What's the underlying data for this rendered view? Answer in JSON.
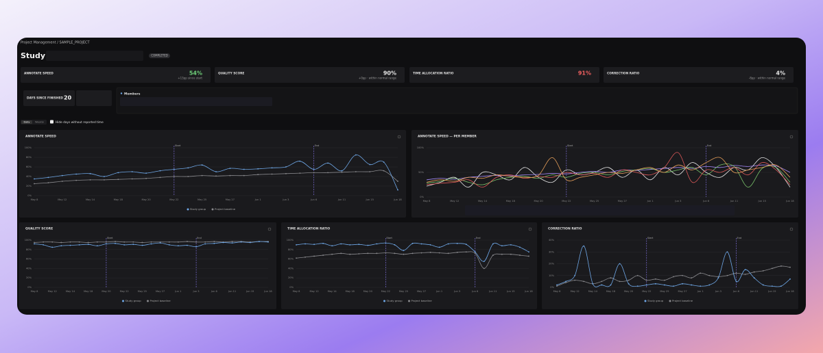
{
  "breadcrumb": "Project Management / SAMPLE_PROJECT",
  "study_label": "Study:",
  "status": "COMPLETED",
  "kpis": [
    {
      "title": "ANNOTATE SPEED",
      "value": 54,
      "value_label": "54%",
      "delta": "+13pp since start",
      "color": "#6fd07a"
    },
    {
      "title": "QUALITY SCORE",
      "value": 90,
      "value_label": "90%",
      "delta": "+0pp · within normal range",
      "color": "#e6e6e6"
    },
    {
      "title": "TIME ALLOCATION RATIO",
      "value": 91,
      "value_label": "91%",
      "delta": "",
      "color": "#f06060"
    },
    {
      "title": "CORRECTION RATIO",
      "value": 4,
      "value_label": "4%",
      "delta": "-8pp · within normal range",
      "color": "#e6e6e6"
    }
  ],
  "days_since_finished": {
    "label": "DAYS SINCE FINISHED",
    "value": 20
  },
  "members_label": "Members",
  "view_toggle": [
    "Daily",
    "Weekly"
  ],
  "hide_days": "Hide days without reported time",
  "chart_data": [
    {
      "type": "line",
      "title": "ANNOTATE SPEED",
      "categories": [
        "May 8",
        null,
        "May 12",
        null,
        "May 14",
        null,
        "May 18",
        null,
        "May 20",
        null,
        "May 22",
        null,
        "May 25",
        null,
        "May 27",
        null,
        "Jun 1",
        null,
        "Jun 3",
        null,
        "Jun 6",
        null,
        "Jun 11",
        null,
        "Jun 15",
        null,
        "Jun 18"
      ],
      "ylim": [
        0,
        100
      ],
      "yticks": [
        {
          "value": 0,
          "label": "0%"
        },
        {
          "value": 20,
          "label": "20%"
        },
        {
          "value": 40,
          "label": "40%"
        },
        {
          "value": 60,
          "label": "60%"
        },
        {
          "value": 80,
          "label": "80%"
        },
        {
          "value": 100,
          "label": "100%"
        }
      ],
      "markers": [
        {
          "label": "Start",
          "at": "May 22"
        },
        {
          "label": "End",
          "at": "Jun 6"
        }
      ],
      "legend": true,
      "series": [
        {
          "name": "Study group",
          "color": "#6fa8e8",
          "dots": true,
          "values": [
            35,
            38,
            42,
            45,
            46,
            40,
            48,
            50,
            47,
            52,
            55,
            58,
            64,
            50,
            57,
            55,
            56,
            58,
            60,
            72,
            55,
            68,
            52,
            85,
            65,
            70,
            12
          ]
        },
        {
          "name": "Project baseline",
          "color": "#8a8a8e",
          "dots": true,
          "values": [
            25,
            27,
            30,
            32,
            33,
            33,
            34,
            35,
            36,
            38,
            40,
            40,
            42,
            41,
            42,
            42,
            44,
            45,
            46,
            47,
            48,
            48,
            49,
            50,
            50,
            52,
            30
          ]
        }
      ]
    },
    {
      "type": "line",
      "title": "ANNOTATE SPEED — PER MEMBER",
      "categories": [
        "May 8",
        null,
        "May 12",
        null,
        "May 14",
        null,
        "May 18",
        null,
        "May 20",
        null,
        "May 22",
        null,
        "May 25",
        null,
        "May 27",
        null,
        "Jun 1",
        null,
        "Jun 3",
        null,
        "Jun 6",
        null,
        "Jun 11",
        null,
        "Jun 15",
        null,
        "Jun 18"
      ],
      "ylim": [
        0,
        100
      ],
      "yticks": [
        {
          "value": 0,
          "label": "0%"
        },
        {
          "value": 50,
          "label": "50%"
        },
        {
          "value": 100,
          "label": "100%"
        }
      ],
      "markers": [
        {
          "label": "Start",
          "at": "May 22"
        },
        {
          "label": "End",
          "at": "Jun 6"
        }
      ],
      "legend": false,
      "series": [
        {
          "color": "#e8a05a",
          "values": [
            30,
            35,
            32,
            40,
            38,
            45,
            42,
            40,
            44,
            80,
            35,
            40,
            45,
            50,
            48,
            55,
            60,
            50,
            65,
            55,
            70,
            80,
            50,
            55,
            60,
            65,
            40
          ]
        },
        {
          "color": "#e05a5a",
          "values": [
            25,
            28,
            30,
            35,
            20,
            40,
            45,
            38,
            42,
            40,
            50,
            45,
            48,
            40,
            55,
            50,
            45,
            60,
            90,
            30,
            55,
            50,
            60,
            45,
            70,
            55,
            25
          ]
        },
        {
          "color": "#7ac36a",
          "values": [
            28,
            32,
            38,
            30,
            25,
            35,
            40,
            42,
            38,
            45,
            40,
            48,
            50,
            45,
            52,
            55,
            58,
            50,
            55,
            60,
            45,
            65,
            62,
            20,
            58,
            60,
            30
          ]
        },
        {
          "color": "#a78bfa",
          "values": [
            35,
            38,
            36,
            40,
            42,
            44,
            43,
            45,
            46,
            48,
            47,
            50,
            52,
            50,
            55,
            54,
            56,
            58,
            60,
            58,
            62,
            60,
            64,
            62,
            65,
            63,
            50
          ]
        },
        {
          "color": "#e6e6e6",
          "values": [
            22,
            30,
            40,
            20,
            50,
            45,
            35,
            60,
            40,
            30,
            55,
            45,
            50,
            60,
            40,
            55,
            35,
            60,
            45,
            70,
            50,
            40,
            60,
            55,
            80,
            60,
            20
          ]
        }
      ]
    },
    {
      "type": "line",
      "title": "QUALITY SCORE",
      "categories": [
        "May 8",
        null,
        "May 12",
        null,
        "May 14",
        null,
        "May 18",
        null,
        "May 20",
        null,
        "May 22",
        null,
        "May 25",
        null,
        "May 27",
        null,
        "Jun 1",
        null,
        "Jun 3",
        null,
        "Jun 6",
        null,
        "Jun 11",
        null,
        "Jun 15",
        null,
        "Jun 18"
      ],
      "ylim": [
        0,
        100
      ],
      "yticks": [
        {
          "value": 0,
          "label": "0%"
        },
        {
          "value": 20,
          "label": "20%"
        },
        {
          "value": 40,
          "label": "40%"
        },
        {
          "value": 60,
          "label": "60%"
        },
        {
          "value": 80,
          "label": "80%"
        },
        {
          "value": 100,
          "label": "100%"
        }
      ],
      "markers": [
        {
          "label": "Start",
          "at": "May 20"
        },
        {
          "label": "End",
          "at": "Jun 3"
        }
      ],
      "legend": true,
      "series": [
        {
          "name": "Study group",
          "color": "#6fa8e8",
          "dots": true,
          "values": [
            92,
            90,
            85,
            88,
            89,
            90,
            91,
            88,
            92,
            93,
            90,
            91,
            89,
            92,
            94,
            90,
            88,
            89,
            86,
            92,
            93,
            95,
            94,
            96,
            95,
            97,
            96
          ]
        },
        {
          "name": "Project baseline",
          "color": "#8a8a8e",
          "dots": true,
          "values": [
            95,
            96,
            96,
            95,
            96,
            96,
            95,
            96,
            96,
            97,
            96,
            96,
            95,
            96,
            96,
            96,
            96,
            97,
            96,
            96,
            97,
            96,
            97,
            97,
            96,
            97,
            97
          ]
        }
      ]
    },
    {
      "type": "line",
      "title": "TIME ALLOCATION RATIO",
      "categories": [
        "May 8",
        null,
        "May 12",
        null,
        "May 14",
        null,
        "May 18",
        null,
        "May 20",
        null,
        "May 22",
        null,
        "May 25",
        null,
        "May 27",
        null,
        "Jun 1",
        null,
        "Jun 3",
        null,
        "Jun 6",
        null,
        "Jun 11",
        null,
        "Jun 15",
        null,
        "Jun 18"
      ],
      "ylim": [
        0,
        100
      ],
      "yticks": [
        {
          "value": 0,
          "label": "0%"
        },
        {
          "value": 20,
          "label": "20%"
        },
        {
          "value": 40,
          "label": "40%"
        },
        {
          "value": 60,
          "label": "60%"
        },
        {
          "value": 80,
          "label": "80%"
        },
        {
          "value": 100,
          "label": "100%"
        }
      ],
      "markers": [
        {
          "label": "Start",
          "at": "May 22"
        },
        {
          "label": "End",
          "at": "Jun 6"
        }
      ],
      "legend": true,
      "series": [
        {
          "name": "Study group",
          "color": "#6fa8e8",
          "dots": true,
          "values": [
            90,
            92,
            91,
            93,
            88,
            92,
            90,
            91,
            89,
            92,
            94,
            90,
            78,
            93,
            92,
            90,
            85,
            92,
            93,
            91,
            75,
            55,
            92,
            88,
            90,
            85,
            75
          ]
        },
        {
          "name": "Project baseline",
          "color": "#8a8a8e",
          "dots": true,
          "values": [
            62,
            64,
            66,
            68,
            70,
            72,
            70,
            71,
            72,
            72,
            73,
            72,
            70,
            72,
            73,
            74,
            73,
            72,
            74,
            75,
            72,
            40,
            68,
            70,
            70,
            68,
            66
          ]
        }
      ]
    },
    {
      "type": "line",
      "title": "CORRECTION RATIO",
      "categories": [
        "May 8",
        null,
        "May 12",
        null,
        "May 14",
        null,
        "May 18",
        null,
        "May 20",
        null,
        "May 22",
        null,
        "May 25",
        null,
        "May 27",
        null,
        "Jun 1",
        null,
        "Jun 3",
        null,
        "Jun 6",
        null,
        "Jun 11",
        null,
        "Jun 15",
        null,
        "Jun 18"
      ],
      "ylim": [
        0,
        40
      ],
      "yticks": [
        {
          "value": 0,
          "label": "0%"
        },
        {
          "value": 10,
          "label": "10%"
        },
        {
          "value": 20,
          "label": "20%"
        },
        {
          "value": 30,
          "label": "30%"
        },
        {
          "value": 40,
          "label": "40%"
        }
      ],
      "markers": [
        {
          "label": "Start",
          "at": "May 22"
        },
        {
          "label": "End",
          "at": "Jun 6"
        }
      ],
      "legend": true,
      "series": [
        {
          "name": "Study group",
          "color": "#6fa8e8",
          "dots": true,
          "values": [
            2,
            5,
            10,
            35,
            3,
            2,
            2,
            20,
            3,
            1,
            2,
            3,
            2,
            1,
            3,
            2,
            1,
            2,
            8,
            30,
            5,
            15,
            8,
            2,
            1,
            1,
            7
          ]
        },
        {
          "name": "Project baseline",
          "color": "#8a8a8e",
          "dots": true,
          "values": [
            1,
            4,
            6,
            5,
            3,
            5,
            8,
            5,
            6,
            10,
            6,
            7,
            6,
            9,
            10,
            8,
            12,
            10,
            9,
            10,
            12,
            11,
            13,
            14,
            16,
            18,
            17
          ]
        }
      ]
    }
  ]
}
